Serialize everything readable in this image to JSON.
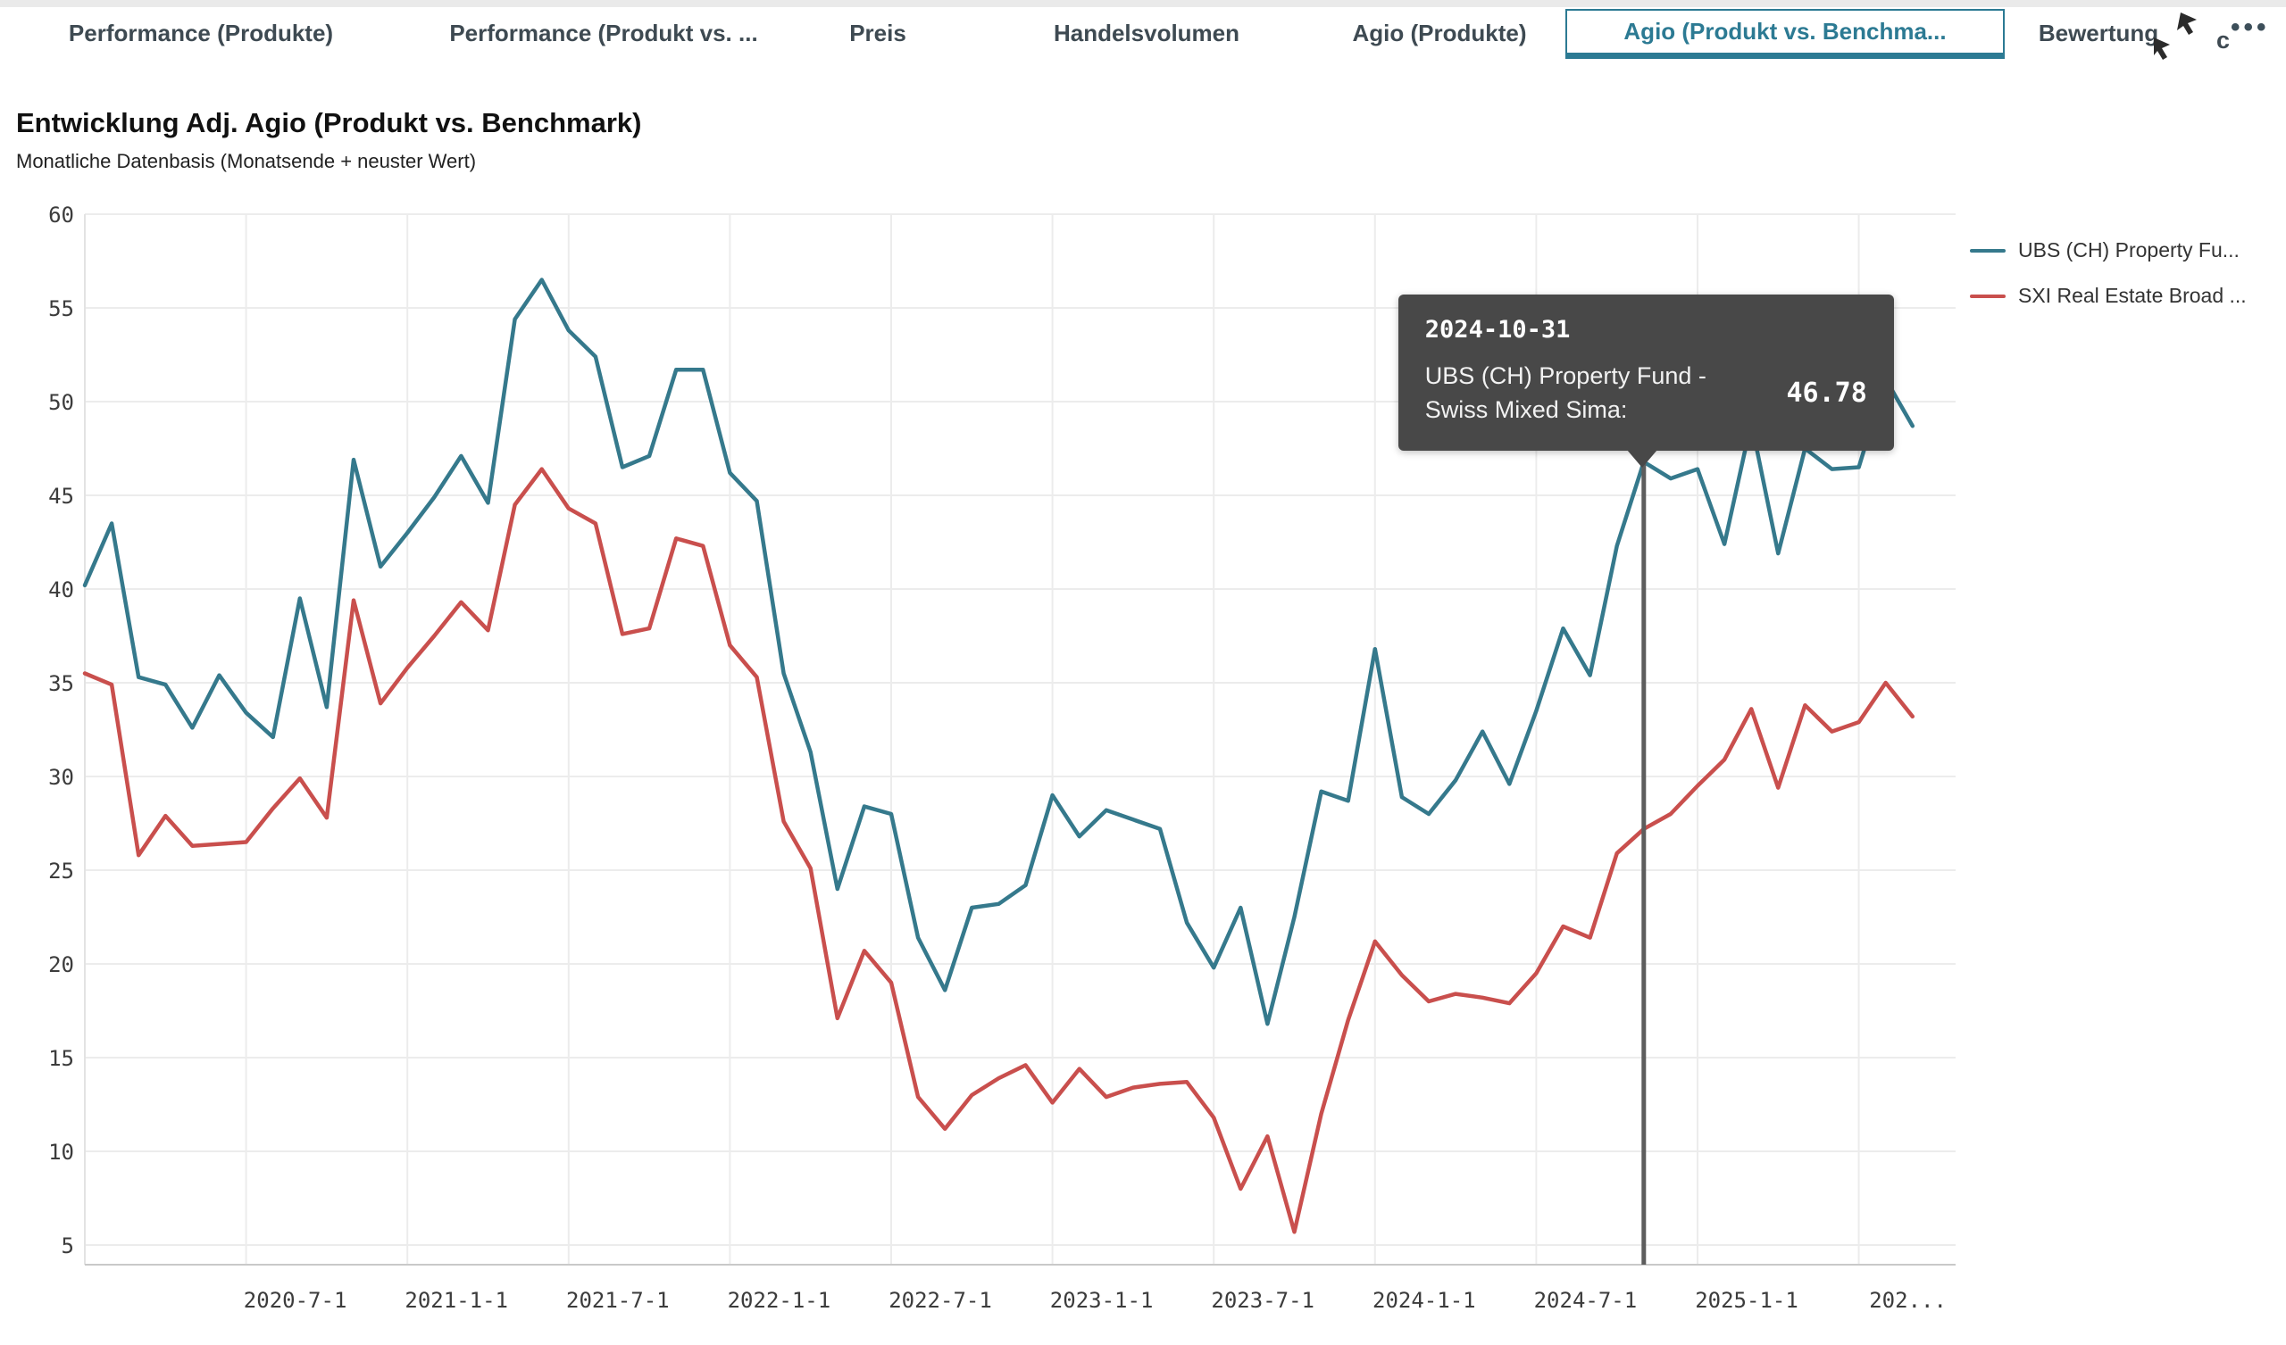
{
  "tabs": {
    "items": [
      {
        "label": "Performance (Produkte)",
        "active": false
      },
      {
        "label": "Performance (Produkt vs. ...",
        "active": false
      },
      {
        "label": "Preis",
        "active": false
      },
      {
        "label": "Handelsvolumen",
        "active": false
      },
      {
        "label": "Agio (Produkte)",
        "active": false
      },
      {
        "label": "Agio (Produkt vs. Benchma...",
        "active": true
      },
      {
        "label": "Bewertung",
        "active": false
      }
    ],
    "fragment": "c",
    "overflow_dots": "•••"
  },
  "header": {
    "title": "Entwicklung Adj. Agio (Produkt vs. Benchmark)",
    "subtitle": "Monatliche Datenbasis (Monatsende + neuster Wert)"
  },
  "legend": [
    {
      "label": "UBS (CH) Property Fu...",
      "color": "#35798c"
    },
    {
      "label": "SXI Real Estate Broad ...",
      "color": "#c94f4d"
    }
  ],
  "tooltip": {
    "date": "2024-10-31",
    "series_label_line1": "UBS (CH) Property Fund -",
    "series_label_line2": "Swiss Mixed Sima:",
    "value": "46.78",
    "anchor_index": 58
  },
  "chart_data": {
    "type": "line",
    "title": "Entwicklung Adj. Agio (Produkt vs. Benchmark)",
    "subtitle": "Monatliche Datenbasis (Monatsende + neuster Wert)",
    "xlabel": "",
    "ylabel": "",
    "grid": true,
    "legend_position": "top-right",
    "ylim": [
      5,
      60
    ],
    "ytick_step": 5,
    "x_dates": [
      "2019-12-31",
      "2020-01-31",
      "2020-02-29",
      "2020-03-31",
      "2020-04-30",
      "2020-05-31",
      "2020-06-30",
      "2020-07-31",
      "2020-08-31",
      "2020-09-30",
      "2020-10-31",
      "2020-11-30",
      "2020-12-31",
      "2021-01-31",
      "2021-02-28",
      "2021-03-31",
      "2021-04-30",
      "2021-05-31",
      "2021-06-30",
      "2021-07-31",
      "2021-08-31",
      "2021-09-30",
      "2021-10-31",
      "2021-11-30",
      "2021-12-31",
      "2022-01-31",
      "2022-02-28",
      "2022-03-31",
      "2022-04-30",
      "2022-05-31",
      "2022-06-30",
      "2022-07-31",
      "2022-08-31",
      "2022-09-30",
      "2022-10-31",
      "2022-11-30",
      "2022-12-31",
      "2023-01-31",
      "2023-02-28",
      "2023-03-31",
      "2023-04-30",
      "2023-05-31",
      "2023-06-30",
      "2023-07-31",
      "2023-08-31",
      "2023-09-30",
      "2023-10-31",
      "2023-11-30",
      "2023-12-31",
      "2024-01-31",
      "2024-02-29",
      "2024-03-31",
      "2024-04-30",
      "2024-05-31",
      "2024-06-30",
      "2024-07-31",
      "2024-08-31",
      "2024-09-30",
      "2024-10-31",
      "2024-11-30",
      "2024-12-31",
      "2025-01-31",
      "2025-02-28",
      "2025-03-31",
      "2025-04-30",
      "2025-05-31",
      "2025-06-30",
      "2025-07-31",
      "2025-08-31"
    ],
    "xticks": [
      {
        "index": 6,
        "label": "2020-7-1"
      },
      {
        "index": 12,
        "label": "2021-1-1"
      },
      {
        "index": 18,
        "label": "2021-7-1"
      },
      {
        "index": 24,
        "label": "2022-1-1"
      },
      {
        "index": 30,
        "label": "2022-7-1"
      },
      {
        "index": 36,
        "label": "2023-1-1"
      },
      {
        "index": 42,
        "label": "2023-7-1"
      },
      {
        "index": 48,
        "label": "2024-1-1"
      },
      {
        "index": 54,
        "label": "2024-7-1"
      },
      {
        "index": 60,
        "label": "2025-1-1"
      },
      {
        "index": 66,
        "label": "202..."
      }
    ],
    "series": [
      {
        "name": "UBS (CH) Property Fund - Swiss Mixed Sima",
        "color": "#35798c",
        "values": [
          40.2,
          43.5,
          35.3,
          34.9,
          32.6,
          35.4,
          33.4,
          32.1,
          39.5,
          33.7,
          46.9,
          41.2,
          43.0,
          44.9,
          47.1,
          44.6,
          54.4,
          56.5,
          53.8,
          52.4,
          46.5,
          47.1,
          51.7,
          51.7,
          46.2,
          44.7,
          35.5,
          31.3,
          24.0,
          28.4,
          28.0,
          21.4,
          18.6,
          23.0,
          23.2,
          24.2,
          29.0,
          26.8,
          28.2,
          27.7,
          27.2,
          22.2,
          19.8,
          23.0,
          16.8,
          22.5,
          29.2,
          28.7,
          36.8,
          28.9,
          28.0,
          29.8,
          32.4,
          29.6,
          33.5,
          37.9,
          35.4,
          42.3,
          46.78,
          45.9,
          46.4,
          42.4,
          48.9,
          41.9,
          47.5,
          46.4,
          46.5,
          51.2,
          48.7
        ]
      },
      {
        "name": "SXI Real Estate Broad",
        "color": "#c94f4d",
        "values": [
          35.5,
          34.9,
          25.8,
          27.9,
          26.3,
          26.4,
          26.5,
          28.3,
          29.9,
          27.8,
          39.4,
          33.9,
          35.8,
          37.5,
          39.3,
          37.8,
          44.5,
          46.4,
          44.3,
          43.5,
          37.6,
          37.9,
          42.7,
          42.3,
          37.0,
          35.3,
          27.6,
          25.1,
          17.1,
          20.7,
          19.0,
          12.9,
          11.2,
          13.0,
          13.9,
          14.6,
          12.6,
          14.4,
          12.9,
          13.4,
          13.6,
          13.7,
          11.8,
          8.0,
          10.8,
          5.7,
          12.0,
          17.0,
          21.2,
          19.4,
          18.0,
          18.4,
          18.2,
          17.9,
          19.5,
          22.0,
          21.4,
          25.9,
          27.2,
          28.0,
          29.5,
          30.9,
          33.6,
          29.4,
          33.8,
          32.4,
          32.9,
          35.0,
          33.2
        ]
      }
    ]
  }
}
